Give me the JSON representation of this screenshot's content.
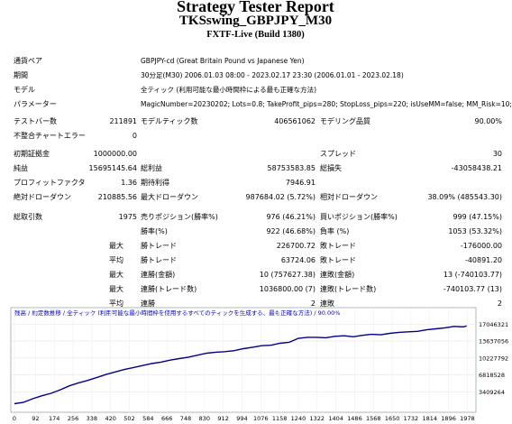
{
  "header": {
    "title": "Strategy Tester Report",
    "subtitle": "TKSswing_GBPJPY_M30",
    "build": "FXTF-Live (Build 1380)"
  },
  "info": {
    "symbol_label": "通貨ペア",
    "symbol_value": "GBPJPY-cd (Great Britain Pound vs Japanese Yen)",
    "period_label": "期間",
    "period_value": "30分足(M30) 2006.01.03 08:00 - 2023.02.17 23:30 (2006.01.01 - 2023.02.18)",
    "model_label": "モデル",
    "model_value": "全ティック (利用可能な最小時間枠による最も正確な方法)",
    "params_label": "パラメーター",
    "params_value": "MagicNumber=20230202; Lots=0.8; TakeProfit_pips=280; StopLoss_pips=220; isUseMM=false; MM_Risk=10;"
  },
  "stats": {
    "bars_label": "テストバー数",
    "bars_value": "211891",
    "ticks_label": "モデルティック数",
    "ticks_value": "406561062",
    "quality_label": "モデリング品質",
    "quality_value": "90.00%",
    "mismatch_label": "不整合チャートエラー",
    "mismatch_value": "0",
    "deposit_label": "初期証拠金",
    "deposit_value": "1000000.00",
    "spread_label": "スプレッド",
    "spread_value": "30",
    "net_label": "純益",
    "net_value": "15695145.64",
    "gross_profit_label": "総利益",
    "gross_profit_value": "58753583.85",
    "gross_loss_label": "総損失",
    "gross_loss_value": "-43058438.21",
    "pf_label": "プロフィットファクタ",
    "pf_value": "1.36",
    "payoff_label": "期待利得",
    "payoff_value": "7946.91",
    "abs_dd_label": "絶対ドローダウン",
    "abs_dd_value": "210885.56",
    "max_dd_label": "最大ドローダウン",
    "max_dd_value": "987684.02 (5.72%)",
    "rel_dd_label": "相対ドローダウン",
    "rel_dd_value": "38.09% (485543.30)",
    "total_trades_label": "総取引数",
    "total_trades_value": "1975",
    "short_label": "売りポジション(勝率%)",
    "short_value": "976 (46.21%)",
    "long_label": "買いポジション(勝率%)",
    "long_value": "999 (47.15%)",
    "win_rate_label": "勝率(%)",
    "win_rate_value": "922 (46.68%)",
    "loss_rate_label": "負率 (%)",
    "loss_rate_value": "1053 (53.32%)",
    "max_label": "最大",
    "avg_label": "平均",
    "largest_win_label": "勝トレード",
    "largest_win_value": "226700.72",
    "largest_loss_label": "敗トレード",
    "largest_loss_value": "-176000.00",
    "avg_win_label": "勝トレード",
    "avg_win_value": "63724.06",
    "avg_loss_label": "敗トレード",
    "avg_loss_value": "-40891.20",
    "max_consec_win_label": "連勝(金額)",
    "max_consec_win_value": "10 (757627.38)",
    "max_consec_loss_label": "連敗(金額)",
    "max_consec_loss_value": "13 (-740103.77)",
    "max_consec_profit_label": "連勝(トレード数)",
    "max_consec_profit_value": "1036800.00 (7)",
    "max_consec_lossamt_label": "連敗(トレード数)",
    "max_consec_lossamt_value": "-740103.77 (13)",
    "avg_consec_win_label": "連勝",
    "avg_consec_win_value": "2",
    "avg_consec_loss_label": "連敗",
    "avg_consec_loss_value": "2"
  },
  "chart_data": {
    "type": "line",
    "legend": "残高 / 約定数推移 / 全ティック (利用可能な最小時間枠を使用するすべてのティックを生成する、最も正確な方法) / 90.00%",
    "x_ticks": [
      "0",
      "92",
      "174",
      "256",
      "338",
      "420",
      "502",
      "584",
      "666",
      "748",
      "830",
      "912",
      "994",
      "1076",
      "1158",
      "1240",
      "1322",
      "1404",
      "1486",
      "1568",
      "1650",
      "1732",
      "1814",
      "1896",
      "1978"
    ],
    "y_ticks": [
      "17046321",
      "13637056",
      "10227792",
      "6818528",
      "3409264"
    ],
    "xlim": [
      0,
      2000
    ],
    "ylim": [
      0,
      18200000
    ],
    "x": [
      0,
      40,
      80,
      120,
      160,
      200,
      240,
      280,
      320,
      360,
      400,
      440,
      480,
      520,
      560,
      600,
      640,
      680,
      720,
      760,
      800,
      840,
      880,
      920,
      960,
      1000,
      1040,
      1080,
      1120,
      1160,
      1200,
      1240,
      1280,
      1320,
      1360,
      1400,
      1440,
      1480,
      1520,
      1560,
      1600,
      1640,
      1680,
      1720,
      1760,
      1800,
      1840,
      1880,
      1920,
      1960,
      1975
    ],
    "y": [
      1000000,
      1300000,
      2000000,
      2600000,
      3100000,
      3800000,
      4600000,
      5200000,
      5700000,
      6300000,
      6900000,
      7400000,
      7900000,
      8300000,
      8700000,
      9100000,
      9400000,
      9800000,
      10100000,
      10400000,
      10800000,
      11200000,
      11400000,
      11500000,
      11700000,
      12100000,
      12400000,
      12700000,
      12800000,
      13200000,
      13400000,
      14200000,
      14400000,
      14400000,
      14300000,
      14600000,
      14700000,
      14500000,
      14800000,
      15000000,
      14900000,
      15200000,
      15400000,
      15500000,
      15600000,
      15900000,
      16100000,
      16300000,
      16600000,
      16500000,
      16695146
    ],
    "line_color": "#00008b"
  }
}
